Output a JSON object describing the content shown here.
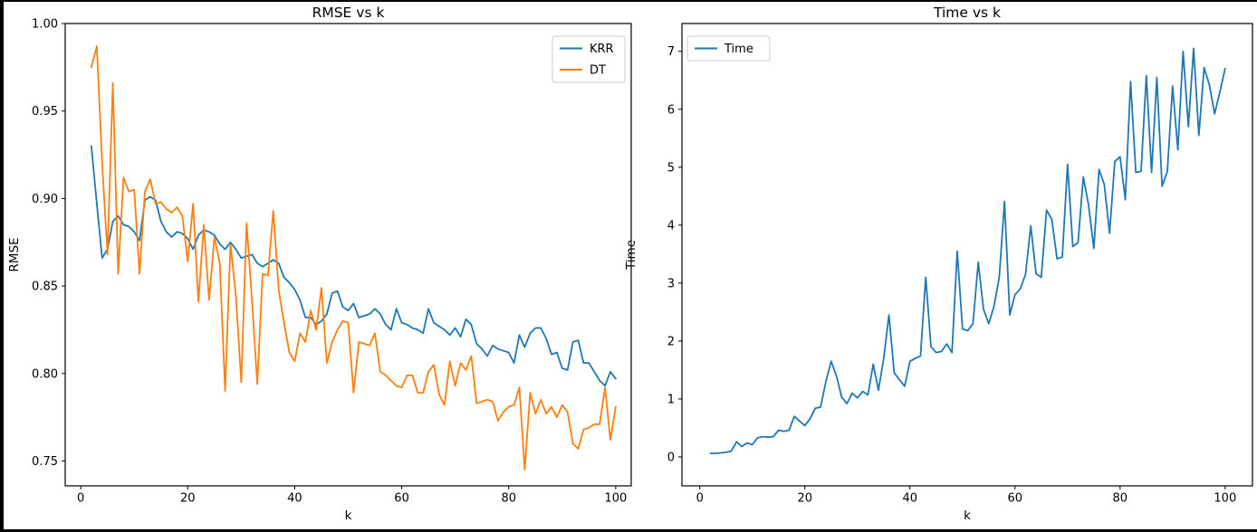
{
  "page": {
    "background": "#000000",
    "figure_background": "#ffffff",
    "text_color": "#000000",
    "spine_color": "#000000",
    "legend_border_color": "#cccccc",
    "legend_fill": "rgba(255,255,255,0.8)"
  },
  "chart_data": [
    {
      "id": "rmse",
      "type": "line",
      "title": "RMSE vs k",
      "xlabel": "k",
      "ylabel": "RMSE",
      "xlim": [
        -2.9,
        102.9
      ],
      "ylim": [
        0.7358,
        1.0
      ],
      "grid": false,
      "xticks": [
        0,
        20,
        40,
        60,
        80,
        100
      ],
      "xtick_labels": [
        "0",
        "20",
        "40",
        "60",
        "80",
        "100"
      ],
      "yticks": [
        0.75,
        0.8,
        0.85,
        0.9,
        0.95,
        1.0
      ],
      "ytick_labels": [
        "0.75",
        "0.80",
        "0.85",
        "0.90",
        "0.95",
        "1.00"
      ],
      "legend": {
        "position": "upper-right",
        "entries": [
          {
            "label": "KRR",
            "color": "#1f77b4"
          },
          {
            "label": "DT",
            "color": "#ff7f0e"
          }
        ]
      },
      "x": [
        2,
        3,
        4,
        5,
        6,
        7,
        8,
        9,
        10,
        11,
        12,
        13,
        14,
        15,
        16,
        17,
        18,
        19,
        20,
        21,
        22,
        23,
        24,
        25,
        26,
        27,
        28,
        29,
        30,
        31,
        32,
        33,
        34,
        35,
        36,
        37,
        38,
        39,
        40,
        41,
        42,
        43,
        44,
        45,
        46,
        47,
        48,
        49,
        50,
        51,
        52,
        53,
        54,
        55,
        56,
        57,
        58,
        59,
        60,
        61,
        62,
        63,
        64,
        65,
        66,
        67,
        68,
        69,
        70,
        71,
        72,
        73,
        74,
        75,
        76,
        77,
        78,
        79,
        80,
        81,
        82,
        83,
        84,
        85,
        86,
        87,
        88,
        89,
        90,
        91,
        92,
        93,
        94,
        95,
        96,
        97,
        98,
        99,
        100
      ],
      "series": [
        {
          "name": "KRR",
          "color": "#1f77b4",
          "values": [
            0.93,
            0.897,
            0.866,
            0.871,
            0.887,
            0.89,
            0.885,
            0.884,
            0.881,
            0.876,
            0.899,
            0.901,
            0.899,
            0.887,
            0.881,
            0.878,
            0.881,
            0.88,
            0.877,
            0.871,
            0.879,
            0.882,
            0.881,
            0.879,
            0.874,
            0.871,
            0.875,
            0.871,
            0.866,
            0.867,
            0.868,
            0.863,
            0.861,
            0.863,
            0.865,
            0.863,
            0.855,
            0.852,
            0.848,
            0.842,
            0.832,
            0.832,
            0.828,
            0.83,
            0.834,
            0.846,
            0.847,
            0.838,
            0.836,
            0.84,
            0.832,
            0.833,
            0.834,
            0.837,
            0.834,
            0.828,
            0.825,
            0.837,
            0.829,
            0.828,
            0.826,
            0.825,
            0.823,
            0.837,
            0.829,
            0.827,
            0.825,
            0.822,
            0.826,
            0.821,
            0.831,
            0.828,
            0.817,
            0.814,
            0.81,
            0.816,
            0.814,
            0.813,
            0.812,
            0.806,
            0.822,
            0.815,
            0.823,
            0.826,
            0.826,
            0.82,
            0.811,
            0.812,
            0.803,
            0.802,
            0.818,
            0.819,
            0.806,
            0.806,
            0.801,
            0.796,
            0.793,
            0.801,
            0.797
          ]
        },
        {
          "name": "DT",
          "color": "#ff7f0e",
          "values": [
            0.975,
            0.987,
            0.92,
            0.868,
            0.966,
            0.857,
            0.912,
            0.904,
            0.905,
            0.857,
            0.904,
            0.911,
            0.897,
            0.898,
            0.894,
            0.892,
            0.895,
            0.89,
            0.864,
            0.897,
            0.841,
            0.885,
            0.842,
            0.878,
            0.863,
            0.79,
            0.874,
            0.845,
            0.795,
            0.886,
            0.842,
            0.794,
            0.857,
            0.856,
            0.893,
            0.848,
            0.829,
            0.812,
            0.807,
            0.823,
            0.818,
            0.836,
            0.825,
            0.849,
            0.806,
            0.818,
            0.825,
            0.83,
            0.829,
            0.789,
            0.818,
            0.817,
            0.816,
            0.823,
            0.801,
            0.799,
            0.796,
            0.793,
            0.792,
            0.799,
            0.799,
            0.789,
            0.789,
            0.801,
            0.805,
            0.788,
            0.782,
            0.807,
            0.793,
            0.806,
            0.802,
            0.81,
            0.783,
            0.784,
            0.785,
            0.784,
            0.773,
            0.778,
            0.781,
            0.782,
            0.792,
            0.745,
            0.789,
            0.777,
            0.785,
            0.777,
            0.781,
            0.775,
            0.782,
            0.778,
            0.76,
            0.757,
            0.768,
            0.769,
            0.771,
            0.771,
            0.792,
            0.762,
            0.781
          ]
        }
      ]
    },
    {
      "id": "time",
      "type": "line",
      "title": "Time vs k",
      "xlabel": "k",
      "ylabel": "Time",
      "xlim": [
        -3.4,
        105.2
      ],
      "ylim": [
        -0.5,
        7.48
      ],
      "grid": false,
      "xticks": [
        0,
        20,
        40,
        60,
        80,
        100
      ],
      "xtick_labels": [
        "0",
        "20",
        "40",
        "60",
        "80",
        "100"
      ],
      "yticks": [
        0,
        1,
        2,
        3,
        4,
        5,
        6,
        7
      ],
      "ytick_labels": [
        "0",
        "1",
        "2",
        "3",
        "4",
        "5",
        "6",
        "7"
      ],
      "legend": {
        "position": "upper-left",
        "entries": [
          {
            "label": "Time",
            "color": "#1f77b4"
          }
        ]
      },
      "x": [
        2,
        3,
        4,
        5,
        6,
        7,
        8,
        9,
        10,
        11,
        12,
        13,
        14,
        15,
        16,
        17,
        18,
        19,
        20,
        21,
        22,
        23,
        24,
        25,
        26,
        27,
        28,
        29,
        30,
        31,
        32,
        33,
        34,
        35,
        36,
        37,
        38,
        39,
        40,
        41,
        42,
        43,
        44,
        45,
        46,
        47,
        48,
        49,
        50,
        51,
        52,
        53,
        54,
        55,
        56,
        57,
        58,
        59,
        60,
        61,
        62,
        63,
        64,
        65,
        66,
        67,
        68,
        69,
        70,
        71,
        72,
        73,
        74,
        75,
        76,
        77,
        78,
        79,
        80,
        81,
        82,
        83,
        84,
        85,
        86,
        87,
        88,
        89,
        90,
        91,
        92,
        93,
        94,
        95,
        96,
        97,
        98,
        99,
        100
      ],
      "series": [
        {
          "name": "Time",
          "color": "#1f77b4",
          "values": [
            0.06,
            0.06,
            0.07,
            0.08,
            0.1,
            0.26,
            0.18,
            0.24,
            0.21,
            0.33,
            0.35,
            0.34,
            0.35,
            0.46,
            0.44,
            0.46,
            0.7,
            0.62,
            0.54,
            0.66,
            0.84,
            0.86,
            1.3,
            1.65,
            1.4,
            1.03,
            0.92,
            1.1,
            1.02,
            1.13,
            1.07,
            1.6,
            1.15,
            1.7,
            2.45,
            1.45,
            1.33,
            1.22,
            1.65,
            1.7,
            1.74,
            3.1,
            1.9,
            1.8,
            1.82,
            1.95,
            1.8,
            3.55,
            2.21,
            2.18,
            2.3,
            3.36,
            2.55,
            2.3,
            2.6,
            3.1,
            4.41,
            2.45,
            2.8,
            2.9,
            3.15,
            3.99,
            3.16,
            3.1,
            4.26,
            4.1,
            3.42,
            3.45,
            5.05,
            3.63,
            3.7,
            4.83,
            4.35,
            3.6,
            4.96,
            4.7,
            3.86,
            5.1,
            5.18,
            4.44,
            6.48,
            4.91,
            4.93,
            6.58,
            4.91,
            6.55,
            4.67,
            4.93,
            6.4,
            5.3,
            7.0,
            5.7,
            7.05,
            5.55,
            6.72,
            6.42,
            5.92,
            6.3,
            6.7
          ]
        }
      ]
    }
  ]
}
